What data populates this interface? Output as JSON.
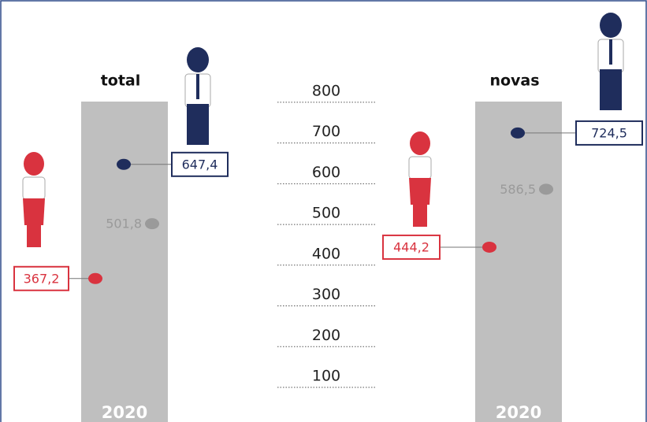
{
  "chart_data": {
    "type": "dot",
    "ylim": [
      15,
      1051
    ],
    "yticks": [
      800,
      700,
      600,
      500,
      400,
      300,
      200,
      100
    ],
    "colors": [
      "#1f2d5c",
      "#9a9a9a",
      "#d9333f"
    ],
    "panels": [
      {
        "title": "total",
        "category": "2020",
        "values": [
          647.4,
          501.8,
          367.2
        ],
        "value_labels": [
          "647,4",
          "501,8",
          "367,2"
        ]
      },
      {
        "title": "novas",
        "category": "2020",
        "values": [
          724.5,
          586.5,
          444.2
        ],
        "value_labels": [
          "724,5",
          "586,5",
          "444,2"
        ]
      }
    ]
  }
}
